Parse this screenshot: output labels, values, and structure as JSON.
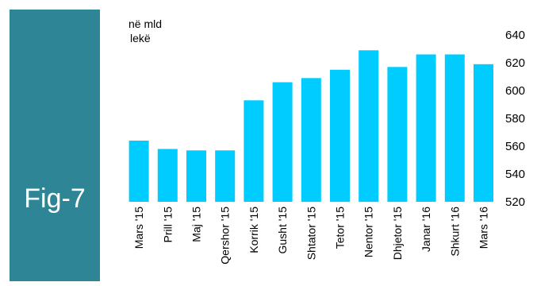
{
  "panel": {
    "label": "Fig-7",
    "color": "#2E8595"
  },
  "chart_data": {
    "type": "bar",
    "unit_label_line1": "në mld",
    "unit_label_line2": "lekë",
    "categories": [
      "Mars '15",
      "Prill '15",
      "Maj '15",
      "Qershor '15",
      "Korrik '15",
      "Gusht '15",
      "Shtator '15",
      "Tetor '15",
      "Nentor '15",
      "Dhjetor '15",
      "Janar '16",
      "Shkurt '16",
      "Mars '16"
    ],
    "values": [
      564,
      558,
      557,
      557,
      593,
      606,
      609,
      615,
      629,
      617,
      626,
      626,
      619
    ],
    "yticks": [
      520,
      540,
      560,
      580,
      600,
      620,
      640
    ],
    "ylim": [
      520,
      640
    ],
    "y_axis_side": "right",
    "bar_color": "#00CCFF",
    "grid": false,
    "legend": "none"
  }
}
